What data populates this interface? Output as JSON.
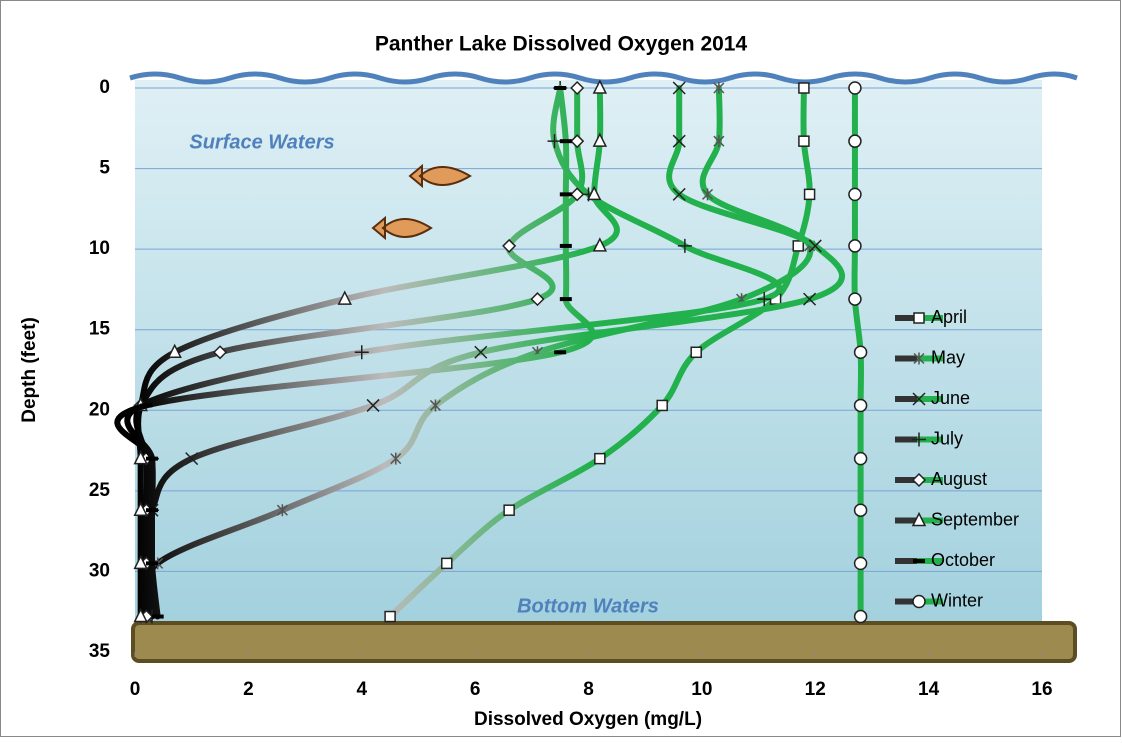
{
  "chart_data": {
    "type": "line",
    "title": "Panther Lake Dissolved Oxygen  2014",
    "x_label": "Dissolved Oxygen (mg/L)",
    "y_label": "Depth (feet)",
    "annotations": [
      "Surface Waters",
      "Bottom Waters"
    ],
    "y": [
      0,
      3.3,
      6.6,
      9.8,
      13.1,
      16.4,
      19.7,
      23,
      26.2,
      29.5,
      32.8
    ],
    "xlim": [
      0,
      16
    ],
    "xticks": [
      0,
      2,
      4,
      6,
      8,
      10,
      12,
      14,
      16
    ],
    "ylim": [
      0,
      35
    ],
    "yticks": [
      0,
      5,
      10,
      15,
      20,
      25,
      30,
      35
    ],
    "y_reversed": true,
    "grid": true,
    "legend": "right",
    "series": [
      {
        "name": "April",
        "color": "#22b14c",
        "marker": "square",
        "values": [
          11.8,
          11.8,
          11.9,
          11.7,
          11.3,
          9.9,
          9.3,
          8.2,
          6.6,
          5.5,
          4.5
        ]
      },
      {
        "name": "May",
        "color": "#22b14c",
        "marker": "asterisk",
        "values": [
          10.3,
          10.3,
          10.1,
          11.9,
          10.7,
          7.1,
          5.3,
          4.6,
          2.6,
          0.4,
          0.2
        ]
      },
      {
        "name": "June",
        "color": "#22b14c",
        "marker": "cross",
        "values": [
          9.6,
          9.6,
          9.6,
          12.0,
          11.9,
          6.1,
          4.2,
          1.0,
          0.3,
          0.2,
          0.2
        ]
      },
      {
        "name": "July",
        "color": "#22b14c",
        "marker": "plus",
        "values": [
          7.5,
          7.4,
          8.0,
          9.7,
          11.1,
          4.0,
          0.1,
          0.3,
          0.3,
          0.3,
          0.3
        ]
      },
      {
        "name": "August",
        "color": "#22b14c",
        "marker": "diamond",
        "values": [
          7.8,
          7.8,
          7.8,
          6.6,
          7.1,
          1.5,
          0.1,
          0.2,
          0.2,
          0.2,
          0.2
        ]
      },
      {
        "name": "September",
        "color": "#22b14c",
        "marker": "triangle",
        "values": [
          8.2,
          8.2,
          8.1,
          8.2,
          3.7,
          0.7,
          0.1,
          0.1,
          0.1,
          0.1,
          0.1
        ]
      },
      {
        "name": "October",
        "color": "#22b14c",
        "marker": "dash",
        "values": [
          7.5,
          7.6,
          7.6,
          7.6,
          7.6,
          7.5,
          0.2,
          0.3,
          0.3,
          0.3,
          0.4
        ]
      },
      {
        "name": "Winter",
        "color": "#22b14c",
        "marker": "circle",
        "values": [
          12.7,
          12.7,
          12.7,
          12.7,
          12.7,
          12.8,
          12.8,
          12.8,
          12.8,
          12.8,
          12.8
        ]
      }
    ]
  }
}
